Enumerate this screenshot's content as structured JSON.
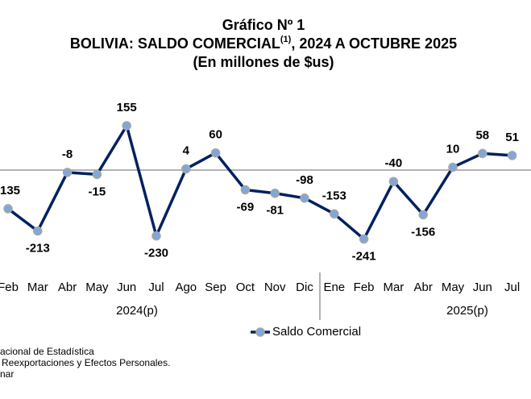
{
  "chart_data": {
    "type": "line",
    "title": "Gráfico Nº 1",
    "subtitle": "BOLIVIA: SALDO COMERCIAL",
    "subtitle_note": "(1)",
    "subtitle_end": ", 2024 A OCTUBRE 2025",
    "unit_note": "(En millones de $us)",
    "categories": [
      "Feb",
      "Mar",
      "Abr",
      "May",
      "Jun",
      "Jul",
      "Ago",
      "Sep",
      "Oct",
      "Nov",
      "Dic",
      "Ene",
      "Feb",
      "Mar",
      "Abr",
      "May",
      "Jun",
      "Jul"
    ],
    "year_groups": [
      "2024(p)",
      "2025(p)"
    ],
    "series": [
      {
        "name": "Saldo Comercial",
        "color": "#002060",
        "marker_color": "#7fa7d9",
        "values": [
          -135,
          -213,
          -8,
          -15,
          155,
          -230,
          4,
          60,
          -69,
          -81,
          -98,
          -153,
          -241,
          -40,
          -156,
          10,
          58,
          51
        ]
      }
    ],
    "ylim": [
      -400,
      400
    ],
    "footer": [
      "acional de Estadística",
      "Reexportaciones y Efectos Personales.",
      "nar"
    ]
  }
}
